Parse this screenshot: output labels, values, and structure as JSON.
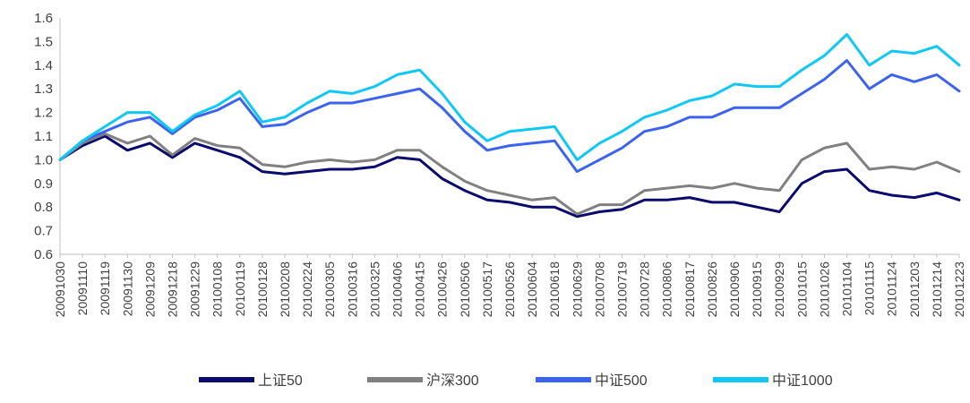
{
  "chart_data": {
    "type": "line",
    "title": "",
    "xlabel": "",
    "ylabel": "",
    "ylim": [
      0.6,
      1.6
    ],
    "yticks": [
      "0.6",
      "0.7",
      "0.8",
      "0.9",
      "1.0",
      "1.1",
      "1.2",
      "1.3",
      "1.4",
      "1.5",
      "1.6"
    ],
    "x": [
      "20091030",
      "20091110",
      "20091119",
      "20091130",
      "20091209",
      "20091218",
      "20091229",
      "20100108",
      "20100119",
      "20100128",
      "20100208",
      "20100224",
      "20100305",
      "20100316",
      "20100325",
      "20100406",
      "20100415",
      "20100426",
      "20100506",
      "20100517",
      "20100526",
      "20100604",
      "20100618",
      "20100629",
      "20100708",
      "20100719",
      "20100728",
      "20100806",
      "20100817",
      "20100826",
      "20100906",
      "20100915",
      "20100929",
      "20101015",
      "20101026",
      "20101104",
      "20101115",
      "20101124",
      "20101203",
      "20101214",
      "20101223"
    ],
    "grid": false,
    "legend_position": "bottom",
    "series": [
      {
        "name": "上证50",
        "color": "#0a0a6e",
        "values": [
          1.0,
          1.06,
          1.1,
          1.04,
          1.07,
          1.01,
          1.07,
          1.04,
          1.01,
          0.95,
          0.94,
          0.95,
          0.96,
          0.96,
          0.97,
          1.01,
          1.0,
          0.92,
          0.87,
          0.83,
          0.82,
          0.8,
          0.8,
          0.76,
          0.78,
          0.79,
          0.83,
          0.83,
          0.84,
          0.82,
          0.82,
          0.8,
          0.78,
          0.9,
          0.95,
          0.96,
          0.87,
          0.85,
          0.84,
          0.86,
          0.83
        ]
      },
      {
        "name": "沪深300",
        "color": "#808080",
        "values": [
          1.0,
          1.07,
          1.11,
          1.07,
          1.1,
          1.02,
          1.09,
          1.06,
          1.05,
          0.98,
          0.97,
          0.99,
          1.0,
          0.99,
          1.0,
          1.04,
          1.04,
          0.97,
          0.91,
          0.87,
          0.85,
          0.83,
          0.84,
          0.77,
          0.81,
          0.81,
          0.87,
          0.88,
          0.89,
          0.88,
          0.9,
          0.88,
          0.87,
          1.0,
          1.05,
          1.07,
          0.96,
          0.97,
          0.96,
          0.99,
          0.95
        ]
      },
      {
        "name": "中证500",
        "color": "#3c63f0",
        "values": [
          1.0,
          1.08,
          1.12,
          1.16,
          1.18,
          1.11,
          1.18,
          1.21,
          1.26,
          1.14,
          1.15,
          1.2,
          1.24,
          1.24,
          1.26,
          1.28,
          1.3,
          1.22,
          1.12,
          1.04,
          1.06,
          1.07,
          1.08,
          0.95,
          1.0,
          1.05,
          1.12,
          1.14,
          1.18,
          1.18,
          1.22,
          1.22,
          1.22,
          1.28,
          1.34,
          1.42,
          1.3,
          1.36,
          1.33,
          1.36,
          1.29
        ]
      },
      {
        "name": "中证1000",
        "color": "#10c8f5",
        "values": [
          1.0,
          1.08,
          1.14,
          1.2,
          1.2,
          1.12,
          1.19,
          1.23,
          1.29,
          1.16,
          1.18,
          1.24,
          1.29,
          1.28,
          1.31,
          1.36,
          1.38,
          1.28,
          1.16,
          1.08,
          1.12,
          1.13,
          1.14,
          1.0,
          1.07,
          1.12,
          1.18,
          1.21,
          1.25,
          1.27,
          1.32,
          1.31,
          1.31,
          1.38,
          1.44,
          1.53,
          1.4,
          1.46,
          1.45,
          1.48,
          1.4
        ]
      }
    ]
  }
}
